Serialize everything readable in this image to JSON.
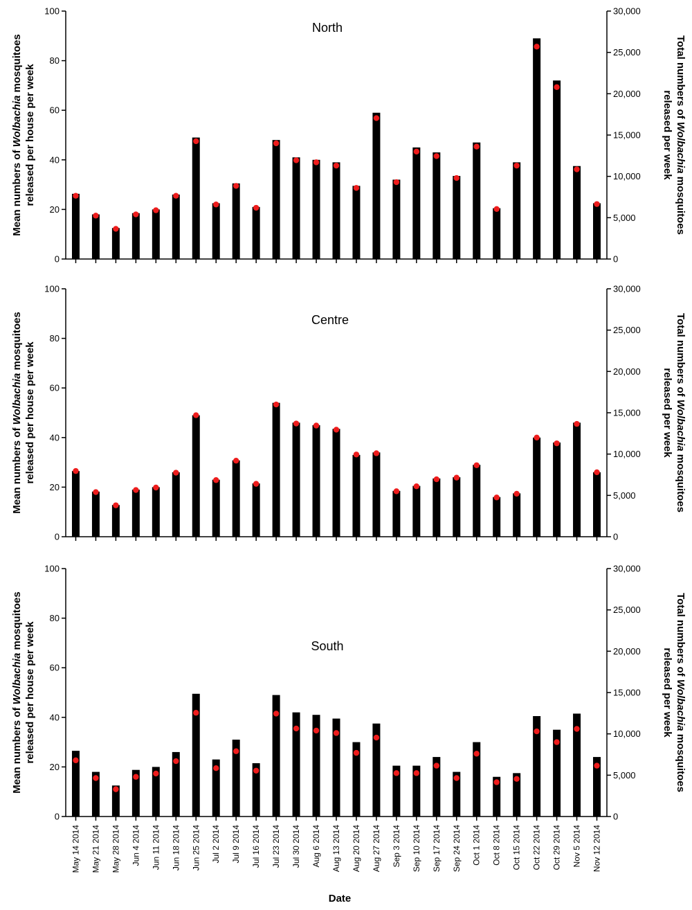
{
  "chart_data": {
    "type": "bar",
    "x_title": "Date",
    "y_left_title": [
      "Mean numbers of |Wolbachia| mosquitoes",
      "released per house per week"
    ],
    "y_right_title": [
      "Total numbers of |Wolbachia| mosquitoes",
      "released per week"
    ],
    "y_left_ticks": [
      "0",
      "20",
      "40",
      "60",
      "80",
      "100"
    ],
    "y_right_ticks": [
      "0",
      "5,000",
      "10,000",
      "15,000",
      "20,000",
      "25,000",
      "30,000"
    ],
    "y_left_lim": [
      0,
      100
    ],
    "y_right_lim": [
      0,
      30000
    ],
    "categories": [
      "May 14 2014",
      "May 21 2014",
      "May 28 2014",
      "Jun 4 2014",
      "Jun 11 2014",
      "Jun 18 2014",
      "Jun 25 2014",
      "Jul 2 2014",
      "Jul 9 2014",
      "Jul 16 2014",
      "Jul 23 2014",
      "Jul 30 2014",
      "Aug 6 2014",
      "Aug 13 2014",
      "Aug 20 2014",
      "Aug 27 2014",
      "Sep 3 2014",
      "Sep 10 2014",
      "Sep 17 2014",
      "Sep 24 2014",
      "Oct 1 2014",
      "Oct 8 2014",
      "Oct 15 2014",
      "Oct 22 2014",
      "Oct 29 2014",
      "Nov 5 2014",
      "Nov 12 2014"
    ],
    "colors": {
      "bar": "#000000",
      "dot": "#ee1c1c"
    },
    "panels": [
      {
        "title": "North",
        "series": [
          {
            "name": "Mean per house per week",
            "axis": "left",
            "mark": "bar",
            "values": [
              26.3,
              18,
              12.5,
              18.5,
              20,
              26,
              49,
              22.5,
              30.5,
              21,
              48,
              41,
              40,
              39,
              29.5,
              59,
              32,
              45,
              43,
              33.5,
              47,
              20.5,
              39,
              89,
              72,
              37.5,
              22.5
            ]
          },
          {
            "name": "Total per week",
            "axis": "right",
            "mark": "dot",
            "values": [
              7650,
              5250,
              3650,
              5400,
              5900,
              7650,
              14250,
              6600,
              8850,
              6200,
              14000,
              11950,
              11700,
              11300,
              8600,
              17050,
              9300,
              13000,
              12450,
              9800,
              13600,
              6050,
              11300,
              25700,
              20800,
              10850,
              6650
            ]
          }
        ]
      },
      {
        "title": "Centre",
        "series": [
          {
            "name": "Mean per house per week",
            "axis": "left",
            "mark": "bar",
            "values": [
              26.5,
              18.2,
              12.8,
              19,
              20,
              26,
              49,
              23,
              30.8,
              21.5,
              54,
              46,
              45,
              43.5,
              33,
              34,
              18.5,
              20.5,
              23.5,
              24,
              29,
              16,
              17.5,
              40,
              38,
              46,
              26
            ]
          },
          {
            "name": "Total per week",
            "axis": "right",
            "mark": "dot",
            "values": [
              7950,
              5400,
              3800,
              5650,
              5950,
              7750,
              14700,
              6850,
              9200,
              6400,
              16000,
              13700,
              13450,
              12950,
              9950,
              10100,
              5500,
              6100,
              6950,
              7150,
              8650,
              4750,
              5200,
              12000,
              11300,
              13650,
              7800
            ]
          }
        ]
      },
      {
        "title": "South",
        "series": [
          {
            "name": "Mean per house per week",
            "axis": "left",
            "mark": "bar",
            "values": [
              26.5,
              18,
              12.5,
              18.8,
              20,
              26,
              49.5,
              23,
              31,
              21.5,
              49,
              42,
              41,
              39.5,
              30,
              37.5,
              20.5,
              20.5,
              24,
              18,
              30,
              16,
              17.5,
              40.5,
              35,
              41.5,
              24
            ]
          },
          {
            "name": "Total per week",
            "axis": "right",
            "mark": "dot",
            "values": [
              6800,
              4650,
              3300,
              4800,
              5200,
              6700,
              12550,
              5850,
              7900,
              5550,
              12450,
              10650,
              10400,
              10100,
              7700,
              9550,
              5250,
              5250,
              6150,
              4650,
              7600,
              4150,
              4550,
              10300,
              9000,
              10600,
              6150
            ]
          }
        ]
      }
    ]
  }
}
